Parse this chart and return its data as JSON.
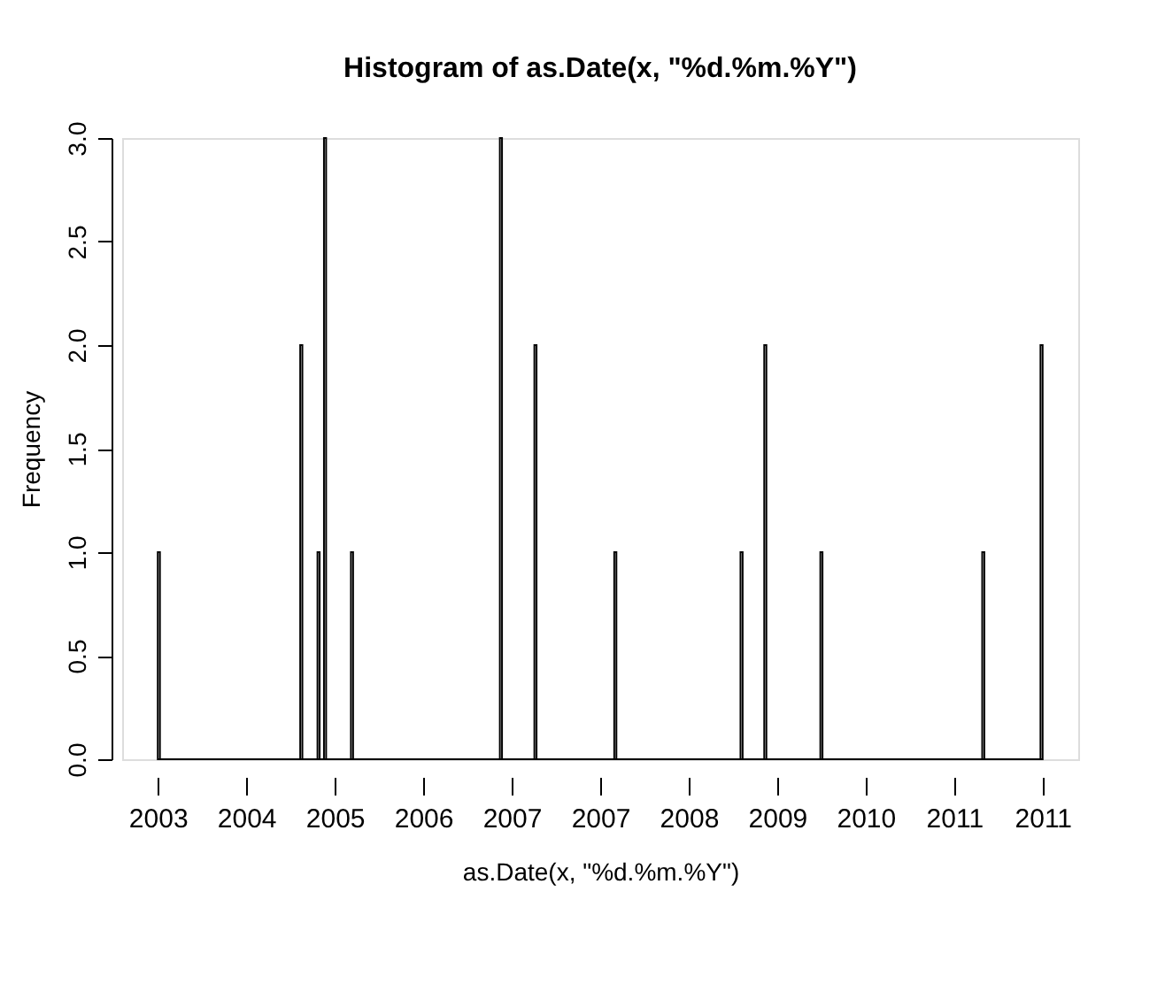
{
  "chart_data": {
    "type": "histogram",
    "title": "Histogram of as.Date(x, \"%d.%m.%Y\")",
    "xlabel": "as.Date(x, \"%d.%m.%Y\")",
    "ylabel": "Frequency",
    "bins": [
      2003.25,
      2003.27,
      2004.57,
      2004.59,
      2004.73,
      2004.75,
      2004.79,
      2004.81,
      2005.04,
      2005.06,
      2006.42,
      2006.44,
      2006.74,
      2006.76,
      2007.48,
      2007.5,
      2008.65,
      2008.67,
      2008.87,
      2008.89,
      2009.39,
      2009.41,
      2010.89,
      2010.91,
      2011.43,
      2011.45
    ],
    "values": [
      1,
      0,
      2,
      0,
      1,
      0,
      3,
      0,
      1,
      0,
      3,
      0,
      2,
      0,
      1,
      0,
      1,
      0,
      2,
      0,
      1,
      0,
      1,
      0,
      2
    ],
    "color": "#ffffff",
    "xlim": [
      2002.92,
      2011.78
    ],
    "ylim": [
      0,
      3
    ],
    "xticks": [
      {
        "value": 2003.25,
        "label": "2003"
      },
      {
        "value": 2004.07,
        "label": "2004"
      },
      {
        "value": 2004.89,
        "label": "2005"
      },
      {
        "value": 2005.71,
        "label": "2006"
      },
      {
        "value": 2006.53,
        "label": "2007"
      },
      {
        "value": 2007.35,
        "label": "2007"
      },
      {
        "value": 2008.17,
        "label": "2008"
      },
      {
        "value": 2008.99,
        "label": "2009"
      },
      {
        "value": 2009.81,
        "label": "2010"
      },
      {
        "value": 2010.63,
        "label": "2011"
      },
      {
        "value": 2011.45,
        "label": "2011"
      }
    ],
    "yticks": [
      {
        "value": 0,
        "label": "0.0"
      },
      {
        "value": 0.5,
        "label": "0.5"
      },
      {
        "value": 1,
        "label": "1.0"
      },
      {
        "value": 1.5,
        "label": "1.5"
      },
      {
        "value": 2,
        "label": "2.0"
      },
      {
        "value": 2.5,
        "label": "2.5"
      },
      {
        "value": 3,
        "label": "3.0"
      }
    ],
    "grid": false
  }
}
